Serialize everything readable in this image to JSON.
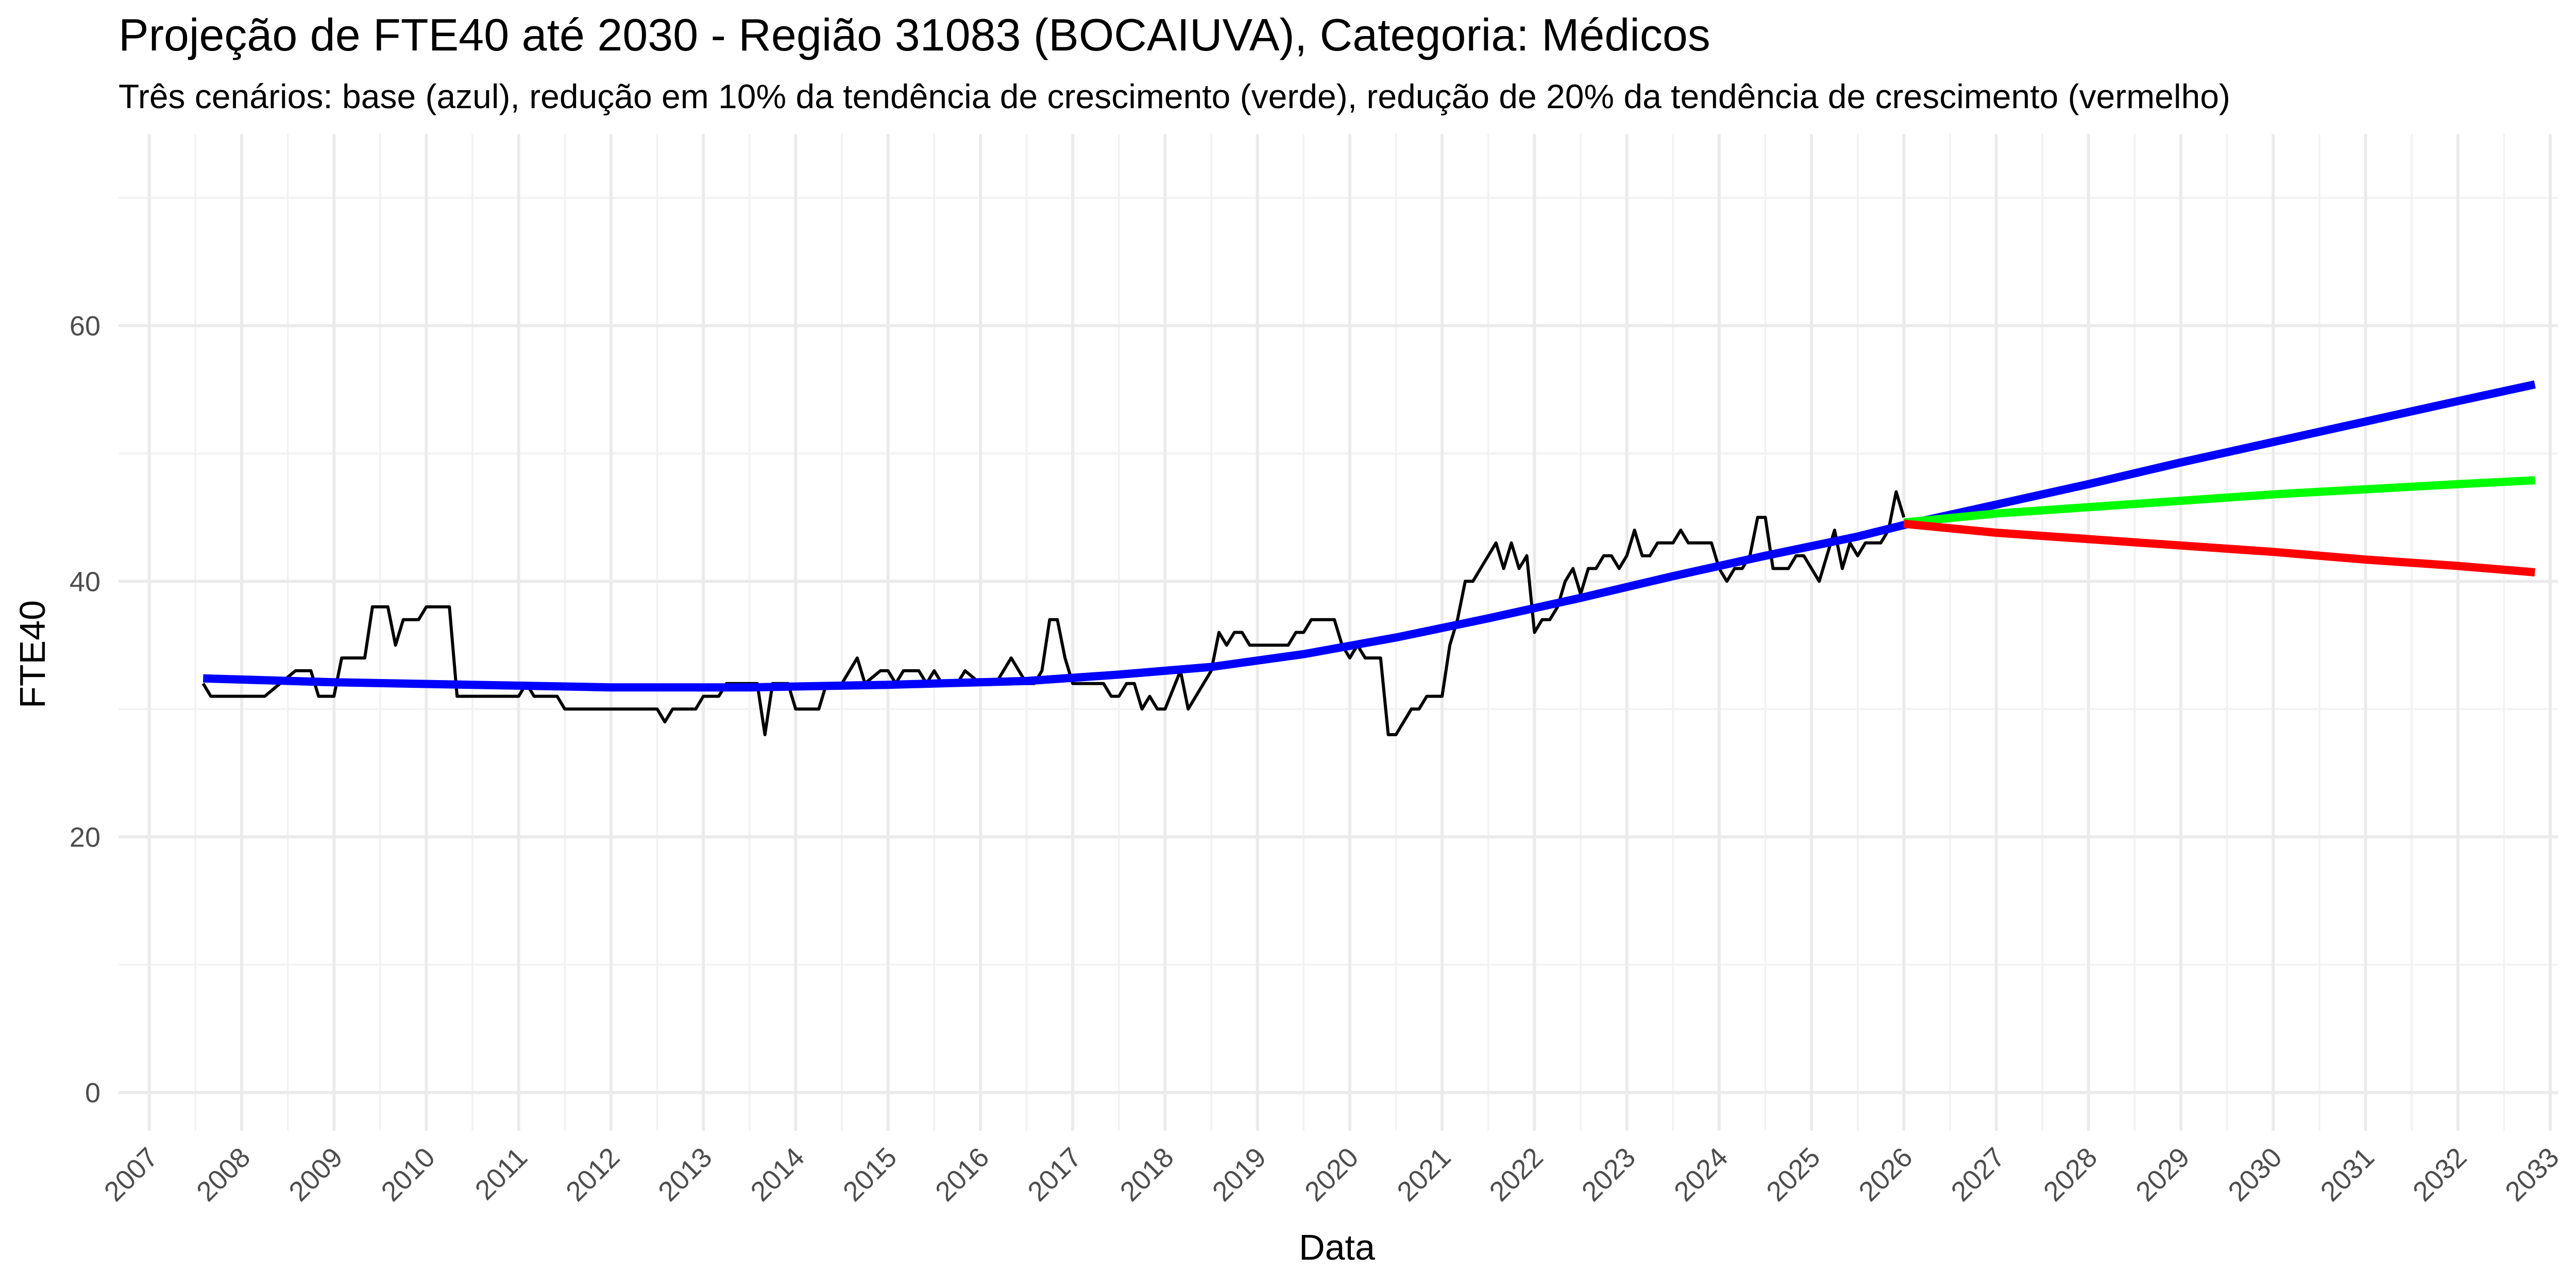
{
  "chart_data": {
    "type": "line",
    "title": "Projeção de FTE40 até 2030 - Região 31083 (BOCAIUVA), Categoria: Médicos",
    "subtitle": "Três cenários: base (azul), redução em 10% da tendência de crescimento (verde), redução de 20% da tendência de crescimento (vermelho)",
    "xlabel": "Data",
    "ylabel": "FTE40",
    "xlim": [
      "2006-09",
      "2033-02"
    ],
    "ylim": [
      -3,
      75
    ],
    "x_ticks": [
      "2007",
      "2008",
      "2009",
      "2010",
      "2011",
      "2012",
      "2013",
      "2014",
      "2015",
      "2016",
      "2017",
      "2018",
      "2019",
      "2020",
      "2021",
      "2022",
      "2023",
      "2024",
      "2025",
      "2026",
      "2027",
      "2028",
      "2029",
      "2030",
      "2031",
      "2032",
      "2033"
    ],
    "y_ticks": [
      0,
      20,
      40,
      60
    ],
    "grid": true,
    "legend": "none",
    "colors": {
      "observed": "#000000",
      "base": "#0000ff",
      "green": "#00ff00",
      "red": "#ff0000"
    },
    "series": [
      {
        "key": "observed",
        "color": "#000000",
        "points": [
          [
            "2007-08",
            32
          ],
          [
            "2007-09",
            31
          ],
          [
            "2007-11",
            31
          ],
          [
            "2008-02",
            31
          ],
          [
            "2008-04",
            31
          ],
          [
            "2008-06",
            32
          ],
          [
            "2008-08",
            33
          ],
          [
            "2008-10",
            33
          ],
          [
            "2008-11",
            31
          ],
          [
            "2009-01",
            31
          ],
          [
            "2009-02",
            34
          ],
          [
            "2009-04",
            34
          ],
          [
            "2009-05",
            34
          ],
          [
            "2009-06",
            38
          ],
          [
            "2009-08",
            38
          ],
          [
            "2009-09",
            35
          ],
          [
            "2009-10",
            37
          ],
          [
            "2009-12",
            37
          ],
          [
            "2010-01",
            38
          ],
          [
            "2010-04",
            38
          ],
          [
            "2010-05",
            31
          ],
          [
            "2010-07",
            31
          ],
          [
            "2010-10",
            31
          ],
          [
            "2011-01",
            31
          ],
          [
            "2011-02",
            32
          ],
          [
            "2011-03",
            31
          ],
          [
            "2011-06",
            31
          ],
          [
            "2011-07",
            30
          ],
          [
            "2011-11",
            30
          ],
          [
            "2012-03",
            30
          ],
          [
            "2012-07",
            30
          ],
          [
            "2012-08",
            29
          ],
          [
            "2012-09",
            30
          ],
          [
            "2012-12",
            30
          ],
          [
            "2013-01",
            31
          ],
          [
            "2013-03",
            31
          ],
          [
            "2013-04",
            32
          ],
          [
            "2013-08",
            32
          ],
          [
            "2013-09",
            28
          ],
          [
            "2013-10",
            32
          ],
          [
            "2013-12",
            32
          ],
          [
            "2014-01",
            30
          ],
          [
            "2014-04",
            30
          ],
          [
            "2014-05",
            32
          ],
          [
            "2014-07",
            32
          ],
          [
            "2014-09",
            34
          ],
          [
            "2014-10",
            32
          ],
          [
            "2014-12",
            33
          ],
          [
            "2015-01",
            33
          ],
          [
            "2015-02",
            32
          ],
          [
            "2015-03",
            33
          ],
          [
            "2015-05",
            33
          ],
          [
            "2015-06",
            32
          ],
          [
            "2015-07",
            33
          ],
          [
            "2015-08",
            32
          ],
          [
            "2015-10",
            32
          ],
          [
            "2015-11",
            33
          ],
          [
            "2016-01",
            32
          ],
          [
            "2016-03",
            32
          ],
          [
            "2016-05",
            34
          ],
          [
            "2016-07",
            32
          ],
          [
            "2016-08",
            32
          ],
          [
            "2016-09",
            33
          ],
          [
            "2016-10",
            37
          ],
          [
            "2016-11",
            37
          ],
          [
            "2016-12",
            34
          ],
          [
            "2017-01",
            32
          ],
          [
            "2017-05",
            32
          ],
          [
            "2017-06",
            31
          ],
          [
            "2017-07",
            31
          ],
          [
            "2017-08",
            32
          ],
          [
            "2017-09",
            32
          ],
          [
            "2017-10",
            30
          ],
          [
            "2017-11",
            31
          ],
          [
            "2017-12",
            30
          ],
          [
            "2018-01",
            30
          ],
          [
            "2018-03",
            33
          ],
          [
            "2018-04",
            30
          ],
          [
            "2018-07",
            33
          ],
          [
            "2018-08",
            36
          ],
          [
            "2018-09",
            35
          ],
          [
            "2018-10",
            36
          ],
          [
            "2018-11",
            36
          ],
          [
            "2018-12",
            35
          ],
          [
            "2019-05",
            35
          ],
          [
            "2019-06",
            36
          ],
          [
            "2019-07",
            36
          ],
          [
            "2019-08",
            37
          ],
          [
            "2019-11",
            37
          ],
          [
            "2019-12",
            35
          ],
          [
            "2020-01",
            34
          ],
          [
            "2020-02",
            35
          ],
          [
            "2020-03",
            34
          ],
          [
            "2020-05",
            34
          ],
          [
            "2020-06",
            28
          ],
          [
            "2020-07",
            28
          ],
          [
            "2020-08",
            29
          ],
          [
            "2020-09",
            30
          ],
          [
            "2020-10",
            30
          ],
          [
            "2020-11",
            31
          ],
          [
            "2021-01",
            31
          ],
          [
            "2021-02",
            35
          ],
          [
            "2021-03",
            37
          ],
          [
            "2021-04",
            40
          ],
          [
            "2021-05",
            40
          ],
          [
            "2021-06",
            41
          ],
          [
            "2021-08",
            43
          ],
          [
            "2021-09",
            41
          ],
          [
            "2021-10",
            43
          ],
          [
            "2021-11",
            41
          ],
          [
            "2021-12",
            42
          ],
          [
            "2022-01",
            36
          ],
          [
            "2022-02",
            37
          ],
          [
            "2022-03",
            37
          ],
          [
            "2022-04",
            38
          ],
          [
            "2022-05",
            40
          ],
          [
            "2022-06",
            41
          ],
          [
            "2022-07",
            39
          ],
          [
            "2022-08",
            41
          ],
          [
            "2022-09",
            41
          ],
          [
            "2022-10",
            42
          ],
          [
            "2022-11",
            42
          ],
          [
            "2022-12",
            41
          ],
          [
            "2023-01",
            42
          ],
          [
            "2023-02",
            44
          ],
          [
            "2023-03",
            42
          ],
          [
            "2023-04",
            42
          ],
          [
            "2023-05",
            43
          ],
          [
            "2023-07",
            43
          ],
          [
            "2023-08",
            44
          ],
          [
            "2023-09",
            43
          ],
          [
            "2023-12",
            43
          ],
          [
            "2024-01",
            41
          ],
          [
            "2024-02",
            40
          ],
          [
            "2024-03",
            41
          ],
          [
            "2024-04",
            41
          ],
          [
            "2024-05",
            42
          ],
          [
            "2024-06",
            45
          ],
          [
            "2024-07",
            45
          ],
          [
            "2024-08",
            41
          ],
          [
            "2024-10",
            41
          ],
          [
            "2024-11",
            42
          ],
          [
            "2024-12",
            42
          ],
          [
            "2025-01",
            41
          ],
          [
            "2025-02",
            40
          ],
          [
            "2025-03",
            42
          ],
          [
            "2025-04",
            44
          ],
          [
            "2025-05",
            41
          ],
          [
            "2025-06",
            43
          ],
          [
            "2025-07",
            42
          ],
          [
            "2025-08",
            43
          ],
          [
            "2025-10",
            43
          ],
          [
            "2025-11",
            44
          ],
          [
            "2025-12",
            47
          ],
          [
            "2026-01",
            45
          ]
        ]
      },
      {
        "key": "base",
        "color": "#0000ff",
        "points": [
          [
            "2007-08",
            32.4
          ],
          [
            "2009-01",
            32.1
          ],
          [
            "2010-07",
            31.9
          ],
          [
            "2012-01",
            31.7
          ],
          [
            "2013-07",
            31.7
          ],
          [
            "2015-01",
            31.9
          ],
          [
            "2016-07",
            32.2
          ],
          [
            "2017-07",
            32.7
          ],
          [
            "2018-07",
            33.3
          ],
          [
            "2019-07",
            34.3
          ],
          [
            "2020-07",
            35.6
          ],
          [
            "2021-07",
            37.1
          ],
          [
            "2022-07",
            38.7
          ],
          [
            "2023-07",
            40.4
          ],
          [
            "2024-07",
            42.0
          ],
          [
            "2025-07",
            43.5
          ],
          [
            "2026-01",
            44.4
          ],
          [
            "2027-01",
            46.0
          ],
          [
            "2028-01",
            47.6
          ],
          [
            "2029-01",
            49.3
          ],
          [
            "2030-01",
            50.9
          ],
          [
            "2031-01",
            52.5
          ],
          [
            "2032-01",
            54.1
          ],
          [
            "2032-11",
            55.4
          ]
        ]
      },
      {
        "key": "green",
        "color": "#00ff00",
        "points": [
          [
            "2026-01",
            44.6
          ],
          [
            "2027-01",
            45.3
          ],
          [
            "2028-01",
            45.8
          ],
          [
            "2029-01",
            46.3
          ],
          [
            "2030-01",
            46.8
          ],
          [
            "2031-01",
            47.2
          ],
          [
            "2032-01",
            47.6
          ],
          [
            "2032-11",
            47.9
          ]
        ]
      },
      {
        "key": "red",
        "color": "#ff0000",
        "points": [
          [
            "2026-01",
            44.5
          ],
          [
            "2027-01",
            43.8
          ],
          [
            "2028-01",
            43.3
          ],
          [
            "2029-01",
            42.8
          ],
          [
            "2030-01",
            42.3
          ],
          [
            "2031-01",
            41.7
          ],
          [
            "2032-01",
            41.2
          ],
          [
            "2032-11",
            40.7
          ]
        ]
      }
    ]
  }
}
